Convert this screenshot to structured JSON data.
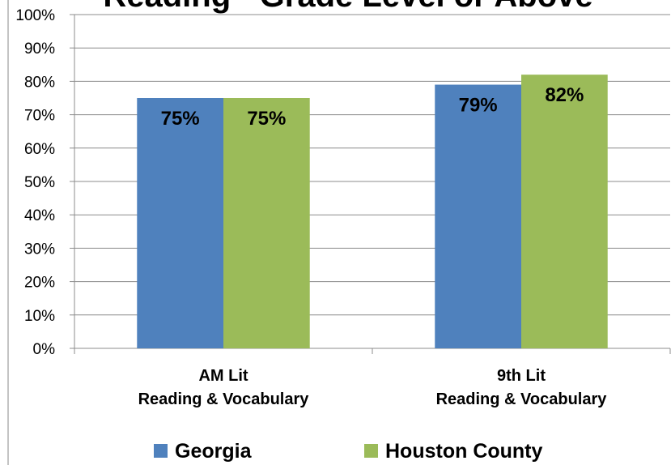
{
  "chart_data": {
    "type": "bar",
    "title": "Reading - Grade Level or Above",
    "categories": [
      [
        "AM Lit",
        "Reading & Vocabulary"
      ],
      [
        "9th Lit",
        "Reading & Vocabulary"
      ]
    ],
    "series": [
      {
        "name": "Georgia",
        "color": "#4f81bd",
        "values": [
          75,
          79
        ],
        "value_labels": [
          "75%",
          "79%"
        ]
      },
      {
        "name": "Houston County",
        "color": "#9bbb59",
        "values": [
          75,
          82
        ],
        "value_labels": [
          "75%",
          "82%"
        ]
      }
    ],
    "ylim": [
      0,
      100
    ],
    "yticks": [
      {
        "value": 0,
        "label": "0%"
      },
      {
        "value": 10,
        "label": "10%"
      },
      {
        "value": 20,
        "label": "20%"
      },
      {
        "value": 30,
        "label": "30%"
      },
      {
        "value": 40,
        "label": "40%"
      },
      {
        "value": 50,
        "label": "50%"
      },
      {
        "value": 60,
        "label": "60%"
      },
      {
        "value": 70,
        "label": "70%"
      },
      {
        "value": 80,
        "label": "80%"
      },
      {
        "value": 90,
        "label": "90%"
      },
      {
        "value": 100,
        "label": "100%"
      }
    ],
    "grid": true,
    "legend": "bottom"
  }
}
